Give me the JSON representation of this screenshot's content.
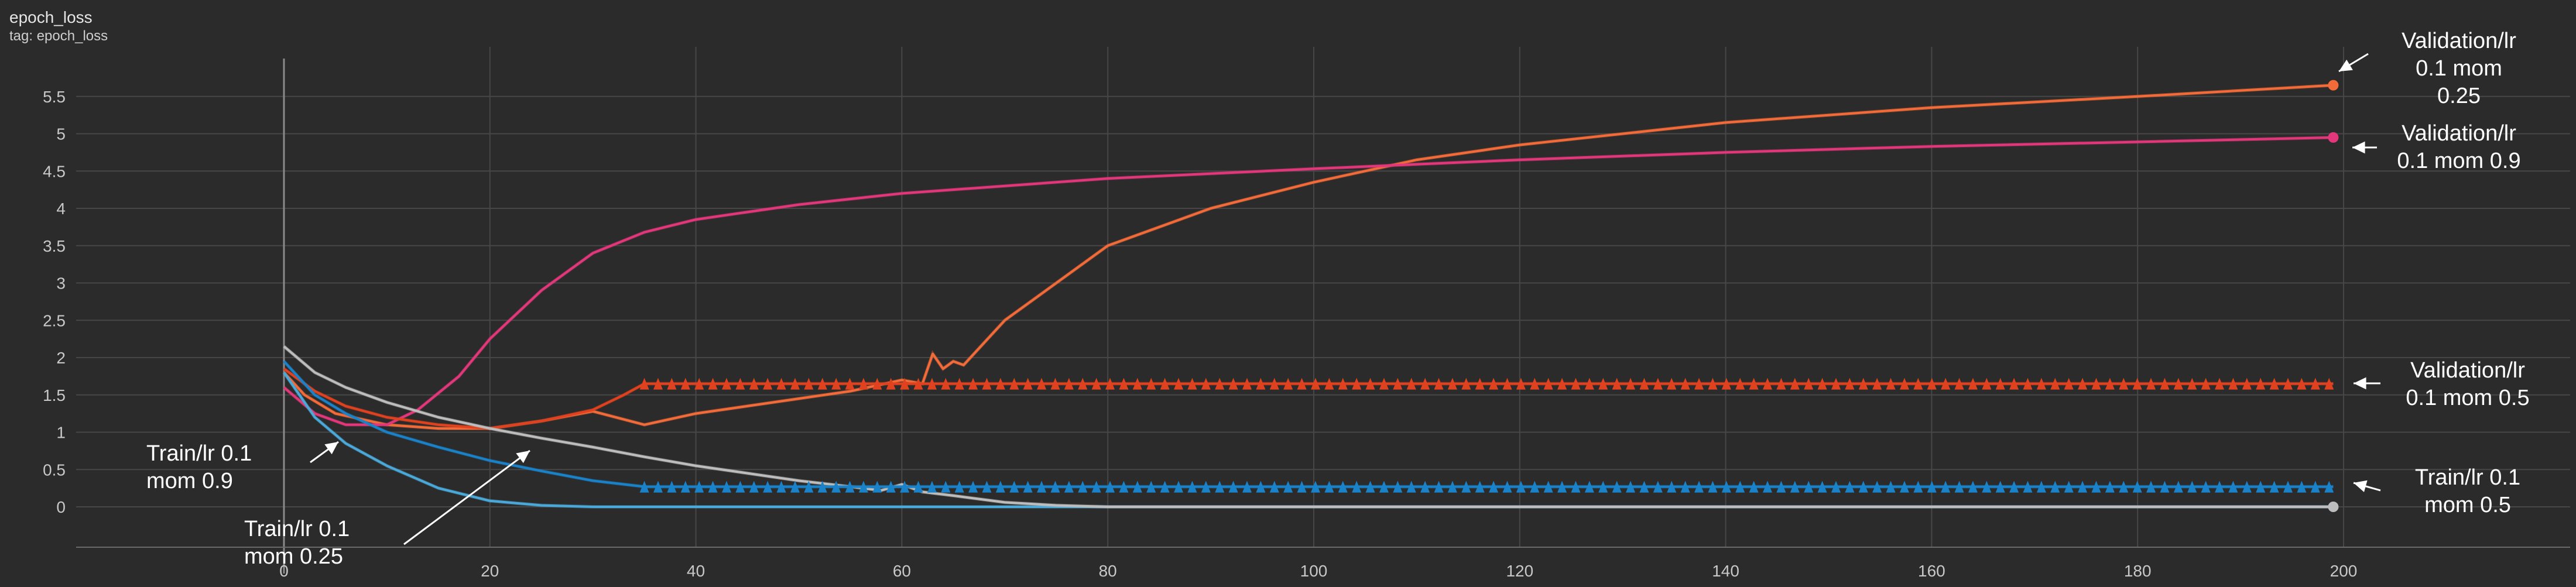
{
  "header": {
    "title": "epoch_loss",
    "tag": "tag: epoch_loss"
  },
  "chart_data": {
    "type": "line",
    "title": "epoch_loss",
    "xlabel": "",
    "ylabel": "",
    "xlim": [
      -20,
      220
    ],
    "ylim": [
      -0.5,
      5.9
    ],
    "grid": true,
    "x_ticks": [
      0,
      20,
      40,
      60,
      80,
      100,
      120,
      140,
      160,
      180,
      200
    ],
    "y_ticks": [
      0,
      0.5,
      1,
      1.5,
      2,
      2.5,
      3,
      3.5,
      4,
      4.5,
      5,
      5.5
    ],
    "series": [
      {
        "name": "Validation/lr 0.1 mom 0.25",
        "color": "#f26b38",
        "x": [
          0,
          2,
          5,
          10,
          15,
          20,
          25,
          30,
          35,
          40,
          45,
          50,
          55,
          60,
          62,
          63,
          64,
          65,
          66,
          68,
          70,
          75,
          80,
          90,
          100,
          110,
          120,
          140,
          160,
          180,
          199
        ],
        "y": [
          1.8,
          1.5,
          1.25,
          1.1,
          1.05,
          1.05,
          1.15,
          1.28,
          1.1,
          1.25,
          1.35,
          1.45,
          1.55,
          1.7,
          1.65,
          2.05,
          1.85,
          1.95,
          1.9,
          2.2,
          2.5,
          3.0,
          3.5,
          4.0,
          4.35,
          4.65,
          4.85,
          5.15,
          5.35,
          5.5,
          5.65
        ]
      },
      {
        "name": "Validation/lr 0.1 mom 0.9",
        "color": "#e2377a",
        "x": [
          0,
          3,
          6,
          10,
          13,
          17,
          20,
          25,
          30,
          35,
          40,
          50,
          60,
          80,
          100,
          120,
          140,
          160,
          180,
          199
        ],
        "y": [
          1.6,
          1.25,
          1.1,
          1.1,
          1.3,
          1.75,
          2.25,
          2.9,
          3.4,
          3.68,
          3.85,
          4.05,
          4.2,
          4.4,
          4.53,
          4.65,
          4.75,
          4.83,
          4.89,
          4.95
        ]
      },
      {
        "name": "Validation/lr 0.1 mom 0.5",
        "color": "#e0421f",
        "x": [
          0,
          3,
          6,
          10,
          15,
          20,
          25,
          30,
          33,
          35,
          40,
          60,
          80,
          100,
          120,
          140,
          160,
          180,
          199
        ],
        "y": [
          1.85,
          1.55,
          1.35,
          1.2,
          1.1,
          1.05,
          1.15,
          1.3,
          1.5,
          1.65,
          1.65,
          1.65,
          1.65,
          1.65,
          1.65,
          1.65,
          1.65,
          1.65,
          1.65
        ]
      },
      {
        "name": "Train/lr 0.1 mom 0.25",
        "color": "#4aa9d9",
        "x": [
          0,
          3,
          6,
          10,
          15,
          20,
          25,
          30,
          40,
          60,
          199
        ],
        "y": [
          1.8,
          1.2,
          0.85,
          0.55,
          0.25,
          0.08,
          0.02,
          0,
          0,
          0,
          0
        ]
      },
      {
        "name": "Train/lr 0.1 mom 0.9",
        "color": "#bdbdbd",
        "x": [
          0,
          3,
          6,
          10,
          15,
          20,
          25,
          30,
          35,
          40,
          45,
          50,
          55,
          58,
          60,
          62,
          65,
          70,
          75,
          80,
          90,
          199
        ],
        "y": [
          2.15,
          1.8,
          1.6,
          1.4,
          1.2,
          1.05,
          0.92,
          0.8,
          0.67,
          0.55,
          0.45,
          0.35,
          0.27,
          0.22,
          0.3,
          0.2,
          0.15,
          0.06,
          0.02,
          0,
          0,
          0
        ]
      },
      {
        "name": "Train/lr 0.1 mom 0.5",
        "color": "#1a82c8",
        "x": [
          0,
          3,
          6,
          10,
          15,
          20,
          25,
          30,
          35,
          40,
          60,
          80,
          100,
          120,
          140,
          160,
          180,
          199
        ],
        "y": [
          1.95,
          1.5,
          1.25,
          1.0,
          0.8,
          0.62,
          0.48,
          0.35,
          0.27,
          0.27,
          0.27,
          0.27,
          0.27,
          0.27,
          0.27,
          0.27,
          0.27,
          0.27
        ]
      }
    ],
    "annotations": [
      "Validation/lr\n0.1 mom\n0.25",
      "Validation/lr\n0.1 mom 0.9",
      "Validation/lr\n0.1 mom 0.5",
      "Train/lr 0.1\nmom 0.5",
      "Train/lr 0.1\nmom 0.9",
      "Train/lr 0.1\nmom 0.25"
    ]
  }
}
